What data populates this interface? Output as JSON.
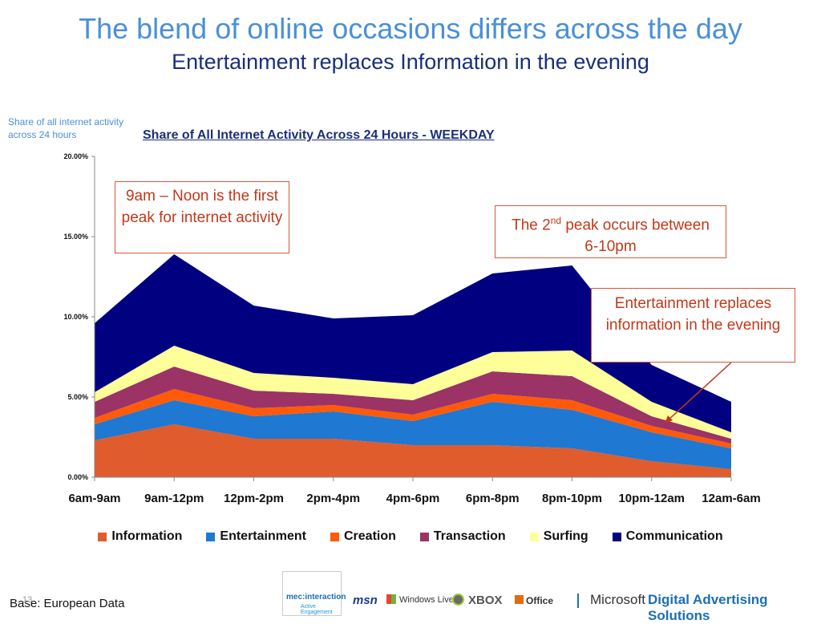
{
  "header": {
    "title": "The blend of online occasions differs across the day",
    "subtitle": "Entertainment replaces Information in the evening"
  },
  "side_note": "Share of all internet activity across 24 hours",
  "callouts": {
    "first_peak": "9am – Noon is the first peak for internet activity",
    "second_peak_pre": "The 2",
    "second_peak_sup": "nd",
    "second_peak_post": " peak occurs between 6-10pm",
    "entertainment": "Entertainment replaces information in the evening"
  },
  "footer": {
    "base": "Base: European Data",
    "page_number": "13",
    "logos": {
      "mec": "mec:interaction",
      "mec_sub": "Active Engagement",
      "msn": "msn",
      "windows_live": "Windows Live",
      "xbox": "XBOX",
      "office": "Office",
      "microsoft": "Microsoft",
      "das": "Digital Advertising Solutions"
    }
  },
  "chart_data": {
    "type": "area",
    "stacked": true,
    "title": "Share of All Internet Activity Across 24 Hours - WEEKDAY",
    "xlabel": "",
    "ylabel": "",
    "ylim": [
      0,
      20
    ],
    "yticks": [
      "0.00%",
      "5.00%",
      "10.00%",
      "15.00%",
      "20.00%"
    ],
    "ytick_values": [
      0,
      5,
      10,
      15,
      20
    ],
    "grid": false,
    "legend_position": "bottom",
    "categories": [
      "6am-9am",
      "9am-12pm",
      "12pm-2pm",
      "2pm-4pm",
      "4pm-6pm",
      "6pm-8pm",
      "8pm-10pm",
      "10pm-12am",
      "12am-6am"
    ],
    "series": [
      {
        "name": "Information",
        "color": "#e05c2c",
        "values": [
          2.3,
          3.3,
          2.4,
          2.4,
          2.0,
          2.0,
          1.8,
          1.0,
          0.5
        ]
      },
      {
        "name": "Entertainment",
        "color": "#1f78d1",
        "values": [
          1.0,
          1.5,
          1.4,
          1.7,
          1.5,
          2.7,
          2.4,
          1.8,
          1.3
        ]
      },
      {
        "name": "Creation",
        "color": "#ff5a0a",
        "values": [
          0.4,
          0.7,
          0.5,
          0.4,
          0.4,
          0.5,
          0.6,
          0.4,
          0.3
        ]
      },
      {
        "name": "Transaction",
        "color": "#9b3366",
        "values": [
          1.0,
          1.4,
          1.1,
          0.7,
          0.9,
          1.4,
          1.5,
          0.6,
          0.3
        ]
      },
      {
        "name": "Surfing",
        "color": "#ffff99",
        "values": [
          0.6,
          1.3,
          1.1,
          1.0,
          1.0,
          1.2,
          1.6,
          0.9,
          0.4
        ]
      },
      {
        "name": "Communication",
        "color": "#000080",
        "values": [
          4.3,
          5.7,
          4.2,
          3.7,
          4.3,
          4.9,
          5.3,
          2.3,
          1.9
        ]
      }
    ]
  }
}
